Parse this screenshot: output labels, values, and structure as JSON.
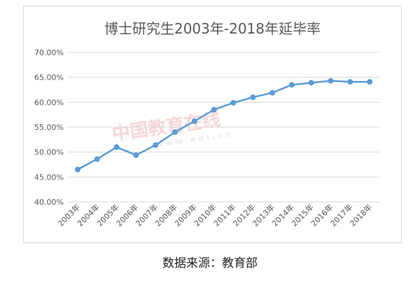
{
  "caption": "数据来源：教育部",
  "watermark": {
    "main": "中国教育在线",
    "sub": "www.eol.cn"
  },
  "chart_data": {
    "type": "line",
    "title": "博士研究生2003年-2018年延毕率",
    "xlabel": "",
    "ylabel": "",
    "ylim": [
      40,
      70
    ],
    "yticks": [
      "40.00%",
      "45.00%",
      "50.00%",
      "55.00%",
      "60.00%",
      "65.00%",
      "70.00%"
    ],
    "grid": true,
    "categories": [
      "2003年",
      "2004年",
      "2005年",
      "2006年",
      "2007年",
      "2008年",
      "2009年",
      "2010年",
      "2011年",
      "2012年",
      "2013年",
      "2014年",
      "2015年",
      "2016年",
      "2017年",
      "2018年"
    ],
    "series": [
      {
        "values": [
          46.5,
          48.6,
          51.0,
          49.4,
          51.4,
          54.0,
          56.2,
          58.5,
          59.9,
          61.0,
          61.9,
          63.5,
          63.9,
          64.3,
          64.1,
          64.1
        ],
        "color": "#5b9bd5"
      }
    ]
  }
}
